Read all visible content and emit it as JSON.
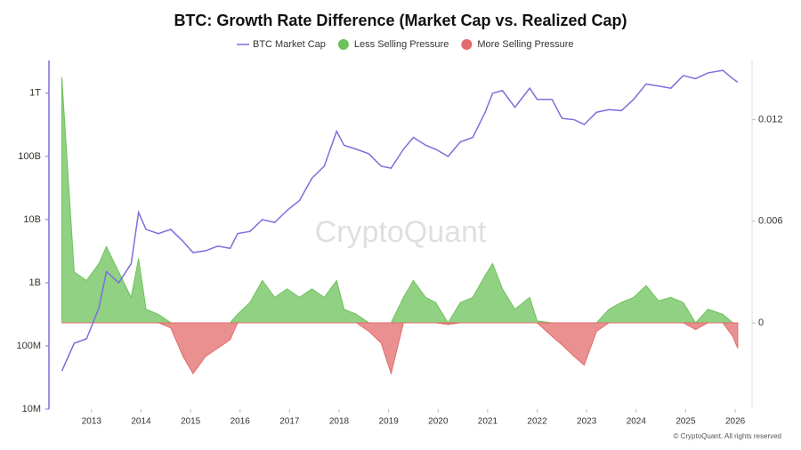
{
  "chart_data": {
    "type": "line-area",
    "title": "BTC: Growth Rate Difference (Market Cap vs. Realized Cap)",
    "watermark": "CryptoQuant",
    "footer": "© CryptoQuant. All rights reserved",
    "x": [
      2012.4,
      2012.65,
      2012.9,
      2013.15,
      2013.3,
      2013.55,
      2013.8,
      2013.95,
      2014.1,
      2014.35,
      2014.6,
      2014.85,
      2015.05,
      2015.3,
      2015.55,
      2015.8,
      2015.95,
      2016.2,
      2016.45,
      2016.7,
      2016.95,
      2017.2,
      2017.45,
      2017.7,
      2017.95,
      2018.1,
      2018.35,
      2018.6,
      2018.85,
      2019.05,
      2019.3,
      2019.5,
      2019.75,
      2019.95,
      2020.2,
      2020.45,
      2020.7,
      2020.95,
      2021.1,
      2021.3,
      2021.55,
      2021.85,
      2022.0,
      2022.3,
      2022.5,
      2022.75,
      2022.95,
      2023.2,
      2023.45,
      2023.7,
      2023.95,
      2024.2,
      2024.45,
      2024.7,
      2024.95,
      2025.2,
      2025.45,
      2025.75,
      2025.95,
      2026.05
    ],
    "xlim": [
      2012.14,
      2026.34
    ],
    "xticks": [
      2013,
      2014,
      2015,
      2016,
      2017,
      2018,
      2019,
      2020,
      2021,
      2022,
      2023,
      2024,
      2025,
      2026
    ],
    "ylog": true,
    "ylim": [
      10000000,
      3300000000000
    ],
    "yticks": [
      {
        "value": 10000000,
        "label": "10M"
      },
      {
        "value": 100000000,
        "label": "100M"
      },
      {
        "value": 1000000000,
        "label": "1B"
      },
      {
        "value": 10000000000,
        "label": "10B"
      },
      {
        "value": 100000000000,
        "label": "100B"
      },
      {
        "value": 1000000000000,
        "label": "1T"
      }
    ],
    "y2lim": [
      -0.0051,
      0.0155
    ],
    "y2ticks": [
      0,
      0.006,
      0.012
    ],
    "series": [
      {
        "name": "BTC Market Cap",
        "color": "#7b6fdc",
        "axis": "y",
        "values": [
          40000000,
          110000000,
          130000000,
          400000000,
          1500000000,
          1000000000,
          2000000000,
          13000000000,
          7000000000,
          6000000000,
          7000000000,
          4500000000,
          3000000000,
          3200000000,
          3800000000,
          3500000000,
          6000000000,
          6500000000,
          10000000000,
          9000000000,
          14000000000,
          20000000000,
          45000000000,
          70000000000,
          250000000000,
          150000000000,
          130000000000,
          110000000000,
          70000000000,
          65000000000,
          130000000000,
          200000000000,
          150000000000,
          130000000000,
          100000000000,
          170000000000,
          200000000000,
          500000000000,
          1000000000000,
          1100000000000,
          600000000000,
          1200000000000,
          800000000000,
          800000000000,
          400000000000,
          380000000000,
          320000000000,
          500000000000,
          550000000000,
          530000000000,
          800000000000,
          1400000000000,
          1300000000000,
          1200000000000,
          1900000000000,
          1700000000000,
          2100000000000,
          2300000000000,
          1700000000000,
          1500000000000
        ]
      },
      {
        "name": "Less Selling Pressure",
        "color": "#6cc25a",
        "axis": "y2",
        "values": [
          0.0145,
          0.003,
          0.0025,
          0.0035,
          0.0045,
          0.003,
          0.0015,
          0.0038,
          0.0008,
          0.0005,
          0,
          0,
          0,
          0,
          0,
          0,
          0.0005,
          0.0012,
          0.0025,
          0.0015,
          0.002,
          0.0015,
          0.002,
          0.0015,
          0.0025,
          0.0008,
          0.0005,
          0,
          0,
          0,
          0.0015,
          0.0025,
          0.0015,
          0.0012,
          0,
          0.0012,
          0.0015,
          0.0028,
          0.0035,
          0.002,
          0.0008,
          0.0015,
          0.0001,
          0,
          0,
          0,
          0,
          0,
          0.0008,
          0.0012,
          0.0015,
          0.0022,
          0.0013,
          0.0015,
          0.0012,
          0,
          0.0008,
          0.0005,
          0,
          0
        ]
      },
      {
        "name": "More Selling Pressure",
        "color": "#e36b6b",
        "axis": "y2",
        "values": [
          0,
          0,
          0,
          0,
          0,
          0,
          0,
          0,
          0,
          0,
          -0.0003,
          -0.002,
          -0.003,
          -0.002,
          -0.0015,
          -0.001,
          0,
          0,
          0,
          0,
          0,
          0,
          0,
          0,
          0,
          0,
          0,
          -0.0005,
          -0.0012,
          -0.003,
          0,
          0,
          0,
          0,
          -0.0001,
          0,
          0,
          0,
          0,
          0,
          0,
          0,
          0,
          -0.0008,
          -0.0013,
          -0.002,
          -0.0025,
          -0.0005,
          0,
          0,
          0,
          0,
          0,
          0,
          0,
          -0.0004,
          0,
          0,
          -0.0008,
          -0.0015
        ]
      }
    ]
  }
}
